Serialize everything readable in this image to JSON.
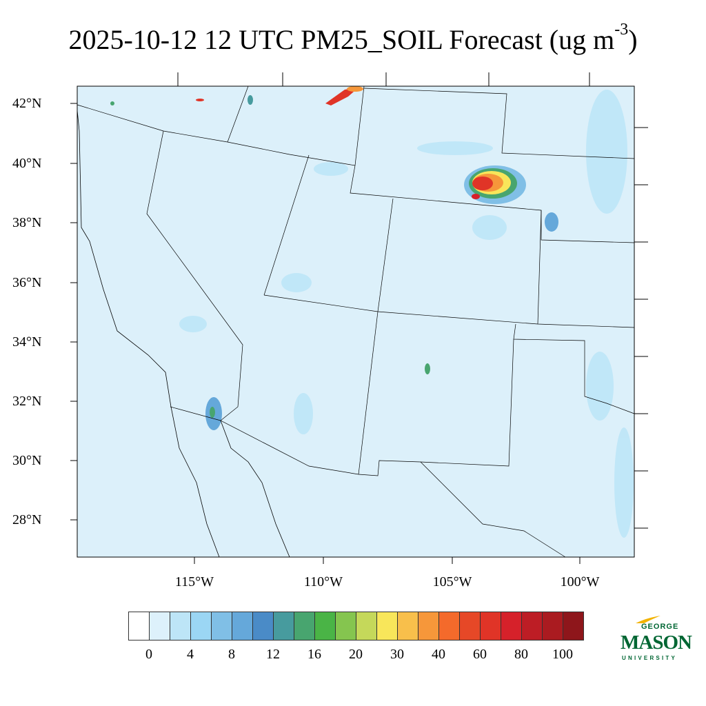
{
  "title": {
    "main": "2025-10-12 12 UTC PM25_SOIL Forecast (ug m",
    "exponent": "-3",
    "close": ")"
  },
  "map": {
    "background_color": "#dcf0fa",
    "lat_labels": [
      "42°N",
      "40°N",
      "38°N",
      "36°N",
      "34°N",
      "32°N",
      "30°N",
      "28°N"
    ],
    "lon_labels": [
      "115°W",
      "110°W",
      "105°W",
      "100°W"
    ]
  },
  "colorbar": {
    "colors": [
      "#ffffff",
      "#ddf1fb",
      "#bde5f7",
      "#9bd6f4",
      "#80bfe6",
      "#65a8da",
      "#4a8bc7",
      "#479b9e",
      "#48a56f",
      "#4ab446",
      "#85c54f",
      "#c5d85a",
      "#f8e65a",
      "#f8bf4b",
      "#f6973a",
      "#f46a2b",
      "#e64827",
      "#e03427",
      "#d6212a",
      "#bd1d25",
      "#aa1b20",
      "#8e161b"
    ],
    "labels": [
      "0",
      "4",
      "8",
      "12",
      "16",
      "20",
      "30",
      "40",
      "60",
      "80",
      "100"
    ]
  },
  "logo": {
    "line1": "GEORGE",
    "line2": "MASON",
    "line3": "UNIVERSITY"
  }
}
